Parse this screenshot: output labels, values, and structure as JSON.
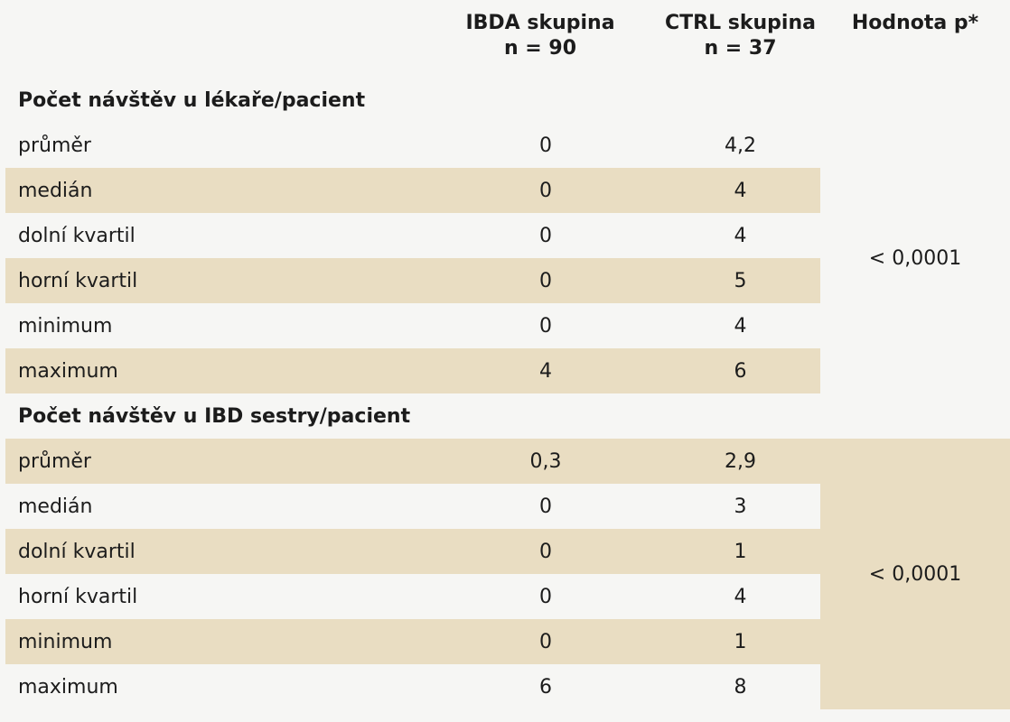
{
  "header": {
    "col1": "IBDA skupina",
    "col1_n": "n = 90",
    "col2": "CTRL skupina",
    "col2_n": "n = 37",
    "col3": "Hodnota p*"
  },
  "sections": [
    {
      "title": "Počet návštěv u lékaře/pacient",
      "p_value": "< 0,0001",
      "rows": [
        {
          "label": "průměr",
          "ibda": "0",
          "ctrl": "4,2"
        },
        {
          "label": "medián",
          "ibda": "0",
          "ctrl": "4"
        },
        {
          "label": "dolní kvartil",
          "ibda": "0",
          "ctrl": "4"
        },
        {
          "label": "horní kvartil",
          "ibda": "0",
          "ctrl": "5"
        },
        {
          "label": "minimum",
          "ibda": "0",
          "ctrl": "4"
        },
        {
          "label": "maximum",
          "ibda": "4",
          "ctrl": "6"
        }
      ]
    },
    {
      "title": "Počet návštěv u IBD sestry/pacient",
      "p_value": "< 0,0001",
      "rows": [
        {
          "label": "průměr",
          "ibda": "0,3",
          "ctrl": "2,9"
        },
        {
          "label": "medián",
          "ibda": "0",
          "ctrl": "3"
        },
        {
          "label": "dolní kvartil",
          "ibda": "0",
          "ctrl": "1"
        },
        {
          "label": "horní kvartil",
          "ibda": "0",
          "ctrl": "4"
        },
        {
          "label": "minimum",
          "ibda": "0",
          "ctrl": "1"
        },
        {
          "label": "maximum",
          "ibda": "6",
          "ctrl": "8"
        }
      ]
    }
  ],
  "colors": {
    "page_background": "#f6f6f4",
    "row_shade": "#e9ddc2",
    "text": "#1c1c1c"
  }
}
